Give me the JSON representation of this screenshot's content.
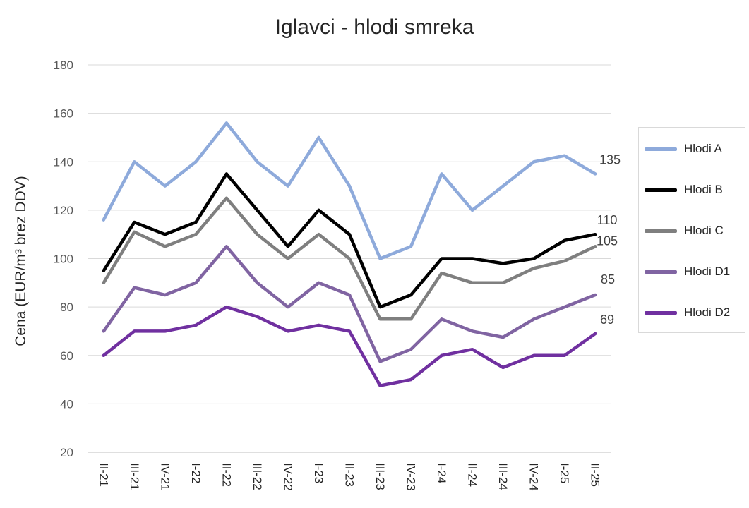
{
  "chart_data": {
    "type": "line",
    "title": "Iglavci - hlodi smreka",
    "ylabel": "Cena (EUR/m³ brez DDV)",
    "xlabel": "",
    "ylim": [
      20,
      180
    ],
    "yticks": [
      20,
      40,
      60,
      80,
      100,
      120,
      140,
      160,
      180
    ],
    "grid": true,
    "legend_position": "right",
    "categories": [
      "II-21",
      "III-21",
      "IV-21",
      "I-22",
      "II-22",
      "III-22",
      "IV-22",
      "I-23",
      "II-23",
      "III-23",
      "IV-23",
      "I-24",
      "II-24",
      "III-24",
      "IV-24",
      "I-25",
      "II-25"
    ],
    "series": [
      {
        "name": "Hlodi A",
        "color": "#8eaadb",
        "end_label": "135",
        "values": [
          116,
          140,
          130,
          140,
          156,
          140,
          130,
          150,
          130,
          100,
          105,
          135,
          120,
          130,
          140,
          142.5,
          135
        ]
      },
      {
        "name": "Hlodi B",
        "color": "#000000",
        "end_label": "110",
        "values": [
          95,
          115,
          110,
          115,
          135,
          120,
          105,
          120,
          110,
          80,
          85,
          100,
          100,
          98,
          100,
          107.5,
          110
        ]
      },
      {
        "name": "Hlodi C",
        "color": "#7f7f7f",
        "end_label": "105",
        "values": [
          90,
          111,
          105,
          110,
          125,
          110,
          100,
          110,
          100,
          75,
          75,
          94,
          90,
          90,
          96,
          99,
          105
        ]
      },
      {
        "name": "Hlodi D1",
        "color": "#8064a2",
        "end_label": "85",
        "values": [
          70,
          88,
          85,
          90,
          105,
          90,
          80,
          90,
          85,
          57.5,
          62.5,
          75,
          70,
          67.5,
          75,
          80,
          85
        ]
      },
      {
        "name": "Hlodi D2",
        "color": "#7030a0",
        "end_label": "69",
        "values": [
          60,
          70,
          70,
          72.5,
          80,
          76,
          70,
          72.5,
          70,
          47.5,
          50,
          60,
          62.5,
          55,
          60,
          60,
          69
        ]
      }
    ]
  }
}
